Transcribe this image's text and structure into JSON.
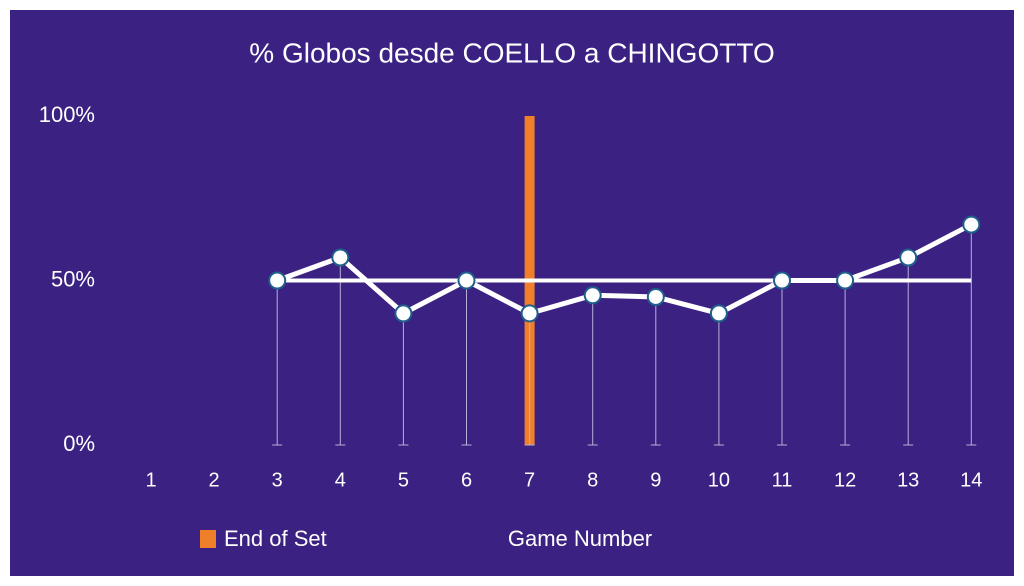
{
  "chart_data": {
    "type": "line",
    "title": "% Globos desde COELLO a CHINGOTTO",
    "x_label": "Game Number",
    "categories": [
      "1",
      "2",
      "3",
      "4",
      "5",
      "6",
      "7",
      "8",
      "9",
      "10",
      "11",
      "12",
      "13",
      "14"
    ],
    "ylim": [
      0,
      100
    ],
    "yticks": [
      {
        "value": 0,
        "label": "0%"
      },
      {
        "value": 50,
        "label": "50%"
      },
      {
        "value": 100,
        "label": "100%"
      }
    ],
    "grid": false,
    "series": [
      {
        "color": "#ffffff",
        "values": [
          null,
          null,
          50,
          57,
          40,
          50,
          40,
          45.5,
          45,
          40,
          50,
          50,
          57,
          67
        ]
      },
      {
        "color": "#ffffff",
        "values": [
          null,
          null,
          50,
          50,
          50,
          50,
          50,
          50,
          50,
          50,
          50,
          50,
          50,
          50
        ]
      },
      {
        "name": "End of Set",
        "type": "bar",
        "color": "#f07f2a",
        "values": [
          null,
          null,
          null,
          null,
          null,
          null,
          100,
          null,
          null,
          null,
          null,
          null,
          null,
          null
        ]
      }
    ]
  }
}
